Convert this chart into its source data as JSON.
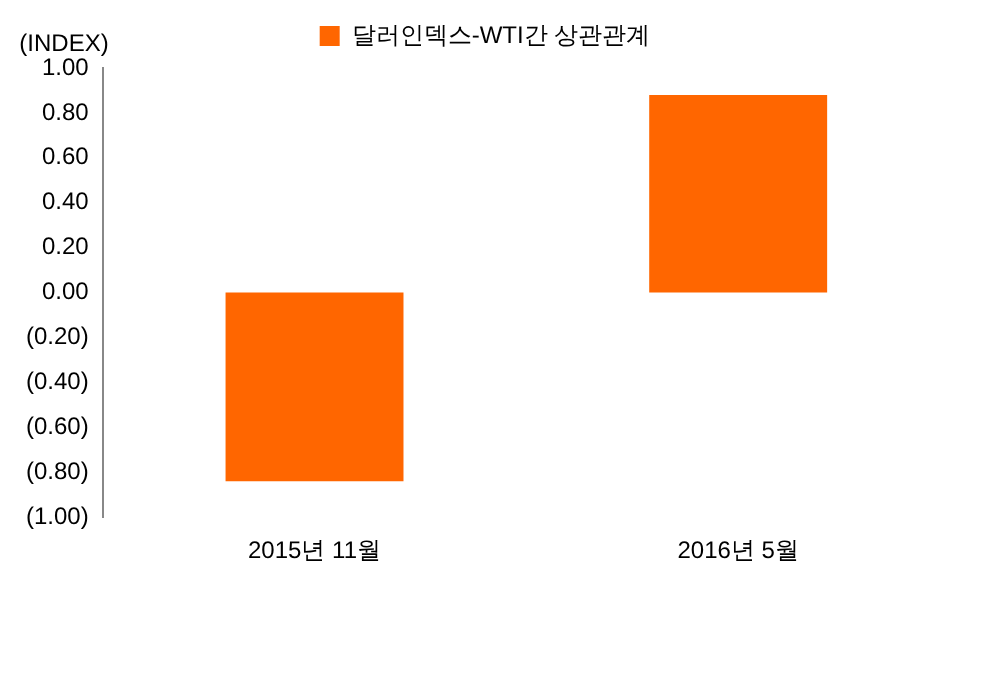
{
  "chart_data": {
    "type": "bar",
    "ylabel": "(INDEX)",
    "categories": [
      "2015년 11월",
      "2016년 5월"
    ],
    "series": [
      {
        "name": "달러인덱스-WTI간 상관관계",
        "color": "#ff6600",
        "values": [
          -0.84,
          0.88
        ]
      }
    ],
    "ylim": [
      -1,
      1
    ],
    "yticks": [
      {
        "value": -1,
        "label": "(1.00)"
      },
      {
        "value": -0.8,
        "label": "(0.80)"
      },
      {
        "value": -0.6,
        "label": "(0.60)"
      },
      {
        "value": -0.4,
        "label": "(0.40)"
      },
      {
        "value": -0.2,
        "label": "(0.20)"
      },
      {
        "value": 0,
        "label": "0.00"
      },
      {
        "value": 0.2,
        "label": "0.20"
      },
      {
        "value": 0.4,
        "label": "0.40"
      },
      {
        "value": 0.6,
        "label": "0.60"
      },
      {
        "value": 0.8,
        "label": "0.80"
      },
      {
        "value": 1,
        "label": "1.00"
      }
    ],
    "grid": false,
    "legend": "top"
  }
}
